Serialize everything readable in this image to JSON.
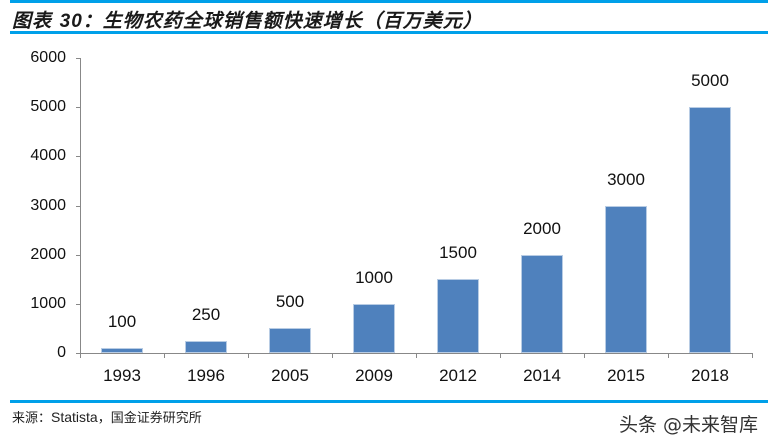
{
  "header": {
    "title_prefix": "图表 ",
    "title_number": "30",
    "title_text": "：生物农药全球销售额快速增长（百万美元）"
  },
  "chart_data": {
    "type": "bar",
    "title": "图表 30：生物农药全球销售额快速增长（百万美元）",
    "xlabel": "",
    "ylabel": "",
    "unit": "百万美元",
    "categories": [
      "1993",
      "1996",
      "2005",
      "2009",
      "2012",
      "2014",
      "2015",
      "2018"
    ],
    "values": [
      100,
      250,
      500,
      1000,
      1500,
      2000,
      3000,
      5000
    ],
    "data_labels": [
      "100",
      "250",
      "500",
      "1000",
      "1500",
      "2000",
      "3000",
      "5000"
    ],
    "ylim": [
      0,
      6000
    ],
    "yticks": [
      "0",
      "1000",
      "2000",
      "3000",
      "4000",
      "5000",
      "6000"
    ],
    "grid": false,
    "legend": null,
    "bar_color": "#4F81BD"
  },
  "footer": {
    "source_label": "来源：",
    "source_en": "Statista",
    "source_rest": "，国金证券研究所",
    "watermark": "头条 @未来智库"
  },
  "colors": {
    "accent_line": "#00A0E9",
    "bar": "#4F81BD"
  }
}
